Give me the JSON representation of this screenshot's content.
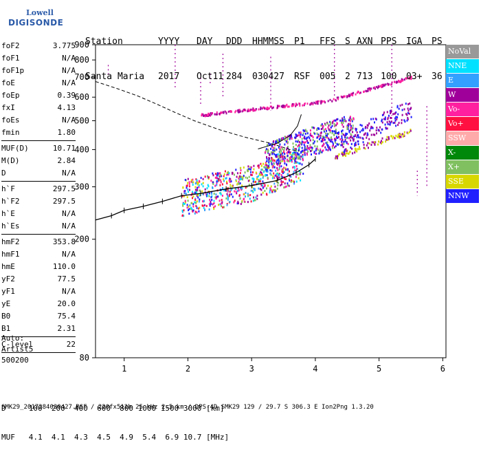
{
  "logo": {
    "line1": "Lowell",
    "line2": "DIGISONDE"
  },
  "header": {
    "labels": [
      "Station",
      "YYYY",
      "DAY",
      "DDD",
      "HHMMSS",
      "P1",
      "FFS",
      "S",
      "AXN",
      "PPS",
      "IGA",
      "PS"
    ],
    "values": [
      "Santa Maria",
      "2017",
      "Oct11",
      "284",
      "030427",
      "RSF",
      "005",
      "2",
      "713",
      "100",
      "03+",
      "36"
    ]
  },
  "params": [
    {
      "k": "foF2",
      "v": "3.775"
    },
    {
      "k": "foF1",
      "v": "N/A"
    },
    {
      "k": "foF1p",
      "v": "N/A"
    },
    {
      "k": "foE",
      "v": "N/A"
    },
    {
      "k": "foEp",
      "v": "0.39"
    },
    {
      "k": "fxI",
      "v": "4.13"
    },
    {
      "k": "foEs",
      "v": "N/A"
    },
    {
      "k": "fmin",
      "v": "1.80"
    },
    {
      "sep": true
    },
    {
      "k": "MUF(D)",
      "v": "10.71"
    },
    {
      "k": "M(D)",
      "v": "2.84"
    },
    {
      "k": "D",
      "v": "N/A"
    },
    {
      "sep": true
    },
    {
      "k": "h`F",
      "v": "297.5"
    },
    {
      "k": "h`F2",
      "v": "297.5"
    },
    {
      "k": "h`E",
      "v": "N/A"
    },
    {
      "k": "h`Es",
      "v": "N/A"
    },
    {
      "sep": true
    },
    {
      "k": "hmF2",
      "v": "353.8"
    },
    {
      "k": "hmF1",
      "v": "N/A"
    },
    {
      "k": "hmE",
      "v": "110.0"
    },
    {
      "k": "yF2",
      "v": "77.5"
    },
    {
      "k": "yF1",
      "v": "N/A"
    },
    {
      "k": "yE",
      "v": "20.0"
    },
    {
      "k": "B0",
      "v": "75.4"
    },
    {
      "k": "B1",
      "v": "2.31"
    },
    {
      "sep": true
    },
    {
      "k": "C-level",
      "v": "22"
    },
    {
      "sep": true
    }
  ],
  "auto": {
    "l1": "Auto:",
    "l2": "Artist5",
    "l3": "500200"
  },
  "legend": [
    {
      "label": "NoVal",
      "color": "#999999"
    },
    {
      "label": "NNE",
      "color": "#00e0ff"
    },
    {
      "label": "E",
      "color": "#33a0ff"
    },
    {
      "label": "W",
      "color": "#a0009a"
    },
    {
      "label": "Vo-",
      "color": "#ff20a0"
    },
    {
      "label": "Vo+",
      "color": "#ff1040"
    },
    {
      "label": "SSW",
      "color": "#ffaaaa"
    },
    {
      "label": "X-",
      "color": "#00880a"
    },
    {
      "label": "X+",
      "color": "#80c060"
    },
    {
      "label": "SSE",
      "color": "#d8d800"
    },
    {
      "label": "NNW",
      "color": "#2020ff"
    }
  ],
  "dtable": {
    "row1": "D     100  200  400  600  800 1000 1500 3000 [km]",
    "row2": "MUF   4.1  4.1  4.3  4.5  4.9  5.4  6.9 10.7 [MHz]"
  },
  "footer": "SMK29_2017284030427.RSF / 220fx512h 25 kHz 2.5 km / DPS-4D SMK29 129 / 29.7 S 306.3 E Ion2Png 1.3.20",
  "chart_data": {
    "type": "scatter",
    "x_ticks": [
      1,
      2,
      3,
      4,
      5,
      6
    ],
    "y_ticks": [
      80,
      200,
      300,
      400,
      500,
      600,
      700,
      800,
      900
    ],
    "xlim": [
      0.55,
      6.05
    ],
    "ylim": [
      80,
      900
    ],
    "y_scale": "log",
    "grid": false,
    "legend_position": "right",
    "profile_curve": [
      [
        0.55,
        677
      ],
      [
        0.9,
        640
      ],
      [
        1.2,
        607
      ],
      [
        1.5,
        570
      ],
      [
        1.8,
        533
      ],
      [
        2.1,
        500
      ],
      [
        2.5,
        466
      ],
      [
        2.9,
        440
      ],
      [
        3.3,
        420
      ],
      [
        3.6,
        400
      ],
      [
        3.75,
        395
      ]
    ],
    "trace_line": [
      [
        0.55,
        232
      ],
      [
        0.8,
        240
      ],
      [
        1.0,
        250
      ],
      [
        1.3,
        258
      ],
      [
        1.6,
        268
      ],
      [
        1.9,
        280
      ],
      [
        2.2,
        285
      ],
      [
        2.6,
        295
      ],
      [
        3.0,
        303
      ],
      [
        3.4,
        315
      ],
      [
        3.7,
        335
      ],
      [
        3.9,
        356
      ],
      [
        4.0,
        372
      ]
    ],
    "trace_errorbars": [
      [
        0.8,
        240
      ],
      [
        1.0,
        250
      ],
      [
        1.3,
        258
      ],
      [
        1.6,
        268
      ],
      [
        1.9,
        280
      ],
      [
        2.2,
        285
      ],
      [
        2.6,
        295
      ],
      [
        3.0,
        303
      ],
      [
        3.4,
        315
      ],
      [
        3.7,
        335
      ],
      [
        3.9,
        356
      ],
      [
        4.0,
        372
      ]
    ],
    "hook_curve": [
      [
        3.1,
        402
      ],
      [
        3.4,
        420
      ],
      [
        3.6,
        445
      ],
      [
        3.72,
        480
      ],
      [
        3.78,
        525
      ]
    ],
    "w_trace": [
      [
        2.2,
        525
      ],
      [
        2.6,
        533
      ],
      [
        3.0,
        540
      ],
      [
        3.4,
        550
      ],
      [
        3.8,
        560
      ],
      [
        4.2,
        575
      ],
      [
        4.6,
        595
      ],
      [
        5.0,
        615
      ],
      [
        5.3,
        635
      ],
      [
        5.5,
        650
      ]
    ],
    "nnw_trace": [
      [
        3.3,
        420
      ],
      [
        3.6,
        425
      ],
      [
        3.9,
        445
      ],
      [
        4.2,
        470
      ],
      [
        4.5,
        500
      ],
      [
        4.7,
        520
      ],
      [
        5.0,
        555
      ],
      [
        5.2,
        590
      ],
      [
        5.4,
        620
      ]
    ],
    "vo_trace": [
      [
        4.4,
        375
      ],
      [
        4.6,
        390
      ],
      [
        4.8,
        405
      ],
      [
        5.0,
        420
      ],
      [
        5.2,
        440
      ],
      [
        5.35,
        460
      ],
      [
        5.5,
        480
      ]
    ]
  }
}
